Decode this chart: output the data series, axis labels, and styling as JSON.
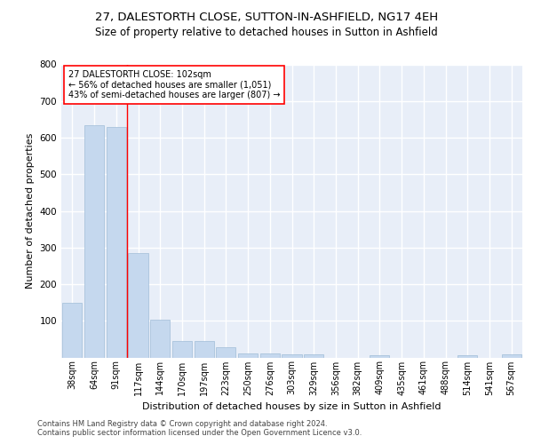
{
  "title1": "27, DALESTORTH CLOSE, SUTTON-IN-ASHFIELD, NG17 4EH",
  "title2": "Size of property relative to detached houses in Sutton in Ashfield",
  "xlabel": "Distribution of detached houses by size in Sutton in Ashfield",
  "ylabel": "Number of detached properties",
  "footnote": "Contains HM Land Registry data © Crown copyright and database right 2024.\nContains public sector information licensed under the Open Government Licence v3.0.",
  "bar_labels": [
    "38sqm",
    "64sqm",
    "91sqm",
    "117sqm",
    "144sqm",
    "170sqm",
    "197sqm",
    "223sqm",
    "250sqm",
    "276sqm",
    "303sqm",
    "329sqm",
    "356sqm",
    "382sqm",
    "409sqm",
    "435sqm",
    "461sqm",
    "488sqm",
    "514sqm",
    "541sqm",
    "567sqm"
  ],
  "bar_values": [
    150,
    635,
    630,
    285,
    103,
    45,
    45,
    28,
    10,
    10,
    8,
    8,
    0,
    0,
    5,
    0,
    0,
    0,
    5,
    0,
    8
  ],
  "bar_color": "#c5d8ee",
  "bar_edge_color": "#a0bdd8",
  "red_line_x": 2.5,
  "annotation_text": "27 DALESTORTH CLOSE: 102sqm\n← 56% of detached houses are smaller (1,051)\n43% of semi-detached houses are larger (807) →",
  "ylim": [
    0,
    800
  ],
  "yticks": [
    0,
    100,
    200,
    300,
    400,
    500,
    600,
    700,
    800
  ],
  "background_color": "#e8eef8",
  "grid_color": "#ffffff",
  "title1_fontsize": 9.5,
  "title2_fontsize": 8.5,
  "xlabel_fontsize": 8,
  "ylabel_fontsize": 8,
  "annotation_fontsize": 7,
  "tick_fontsize": 7,
  "ytick_fontsize": 7.5,
  "footnote_fontsize": 6
}
